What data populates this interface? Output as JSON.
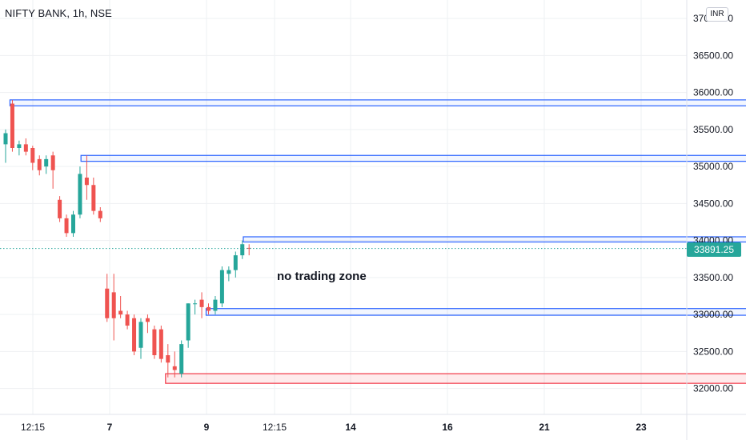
{
  "header": {
    "symbol": "NIFTY BANK, 1h, NSE",
    "currency": "INR"
  },
  "last_price_label": "33891.25",
  "annotation": "no trading zone",
  "colors": {
    "up": "#26a69a",
    "down": "#ef5350",
    "zone_blue": "#2962ff",
    "zone_red": "#f23645",
    "grid": "#eef0f3",
    "axis_text": "#131722"
  },
  "chart_data": {
    "type": "candlestick",
    "title": "NIFTY BANK, 1h, NSE",
    "ylim": [
      31650,
      37250
    ],
    "y_ticks": [
      32000,
      32500,
      33000,
      33500,
      34000,
      34500,
      35000,
      35500,
      36000,
      36500,
      37000
    ],
    "y_tick_labels": [
      "32000.00",
      "32500.00",
      "33000.00",
      "33500.00",
      "34000.00",
      "34500.00",
      "35000.00",
      "35500.00",
      "36000.00",
      "36500.00",
      "37000.00"
    ],
    "x_labels": [
      "12:15",
      "7",
      "9",
      "12:15",
      "14",
      "16",
      "21",
      "23"
    ],
    "last_price": 33891.25,
    "candles": [
      {
        "o": 35300,
        "h": 35500,
        "l": 35050,
        "c": 35450
      },
      {
        "o": 35850,
        "h": 35900,
        "l": 35200,
        "c": 35250
      },
      {
        "o": 35250,
        "h": 35350,
        "l": 35150,
        "c": 35300
      },
      {
        "o": 35300,
        "h": 35380,
        "l": 35150,
        "c": 35200
      },
      {
        "o": 35250,
        "h": 35280,
        "l": 34950,
        "c": 35050
      },
      {
        "o": 35100,
        "h": 35150,
        "l": 34880,
        "c": 34950
      },
      {
        "o": 35000,
        "h": 35150,
        "l": 34900,
        "c": 35100
      },
      {
        "o": 35150,
        "h": 35200,
        "l": 34700,
        "c": 34950
      },
      {
        "o": 34550,
        "h": 34600,
        "l": 34250,
        "c": 34300
      },
      {
        "o": 34300,
        "h": 34350,
        "l": 34050,
        "c": 34100
      },
      {
        "o": 34100,
        "h": 34400,
        "l": 34050,
        "c": 34350
      },
      {
        "o": 34350,
        "h": 35000,
        "l": 34300,
        "c": 34900
      },
      {
        "o": 34850,
        "h": 35150,
        "l": 34550,
        "c": 34750
      },
      {
        "o": 34750,
        "h": 34850,
        "l": 34350,
        "c": 34400
      },
      {
        "o": 34400,
        "h": 34450,
        "l": 34250,
        "c": 34300
      },
      {
        "o": 33350,
        "h": 33550,
        "l": 32900,
        "c": 32950
      },
      {
        "o": 33300,
        "h": 33550,
        "l": 32650,
        "c": 32950
      },
      {
        "o": 33050,
        "h": 33250,
        "l": 32950,
        "c": 33000
      },
      {
        "o": 33000,
        "h": 33050,
        "l": 32800,
        "c": 32850
      },
      {
        "o": 32950,
        "h": 33000,
        "l": 32450,
        "c": 32500
      },
      {
        "o": 32550,
        "h": 32950,
        "l": 32400,
        "c": 32900
      },
      {
        "o": 32950,
        "h": 33000,
        "l": 32750,
        "c": 32900
      },
      {
        "o": 32800,
        "h": 32850,
        "l": 32400,
        "c": 32450
      },
      {
        "o": 32800,
        "h": 32850,
        "l": 32350,
        "c": 32400
      },
      {
        "o": 32450,
        "h": 32600,
        "l": 32150,
        "c": 32350
      },
      {
        "o": 32300,
        "h": 32500,
        "l": 32150,
        "c": 32250
      },
      {
        "o": 32200,
        "h": 32650,
        "l": 32150,
        "c": 32600
      },
      {
        "o": 32650,
        "h": 33150,
        "l": 32550,
        "c": 33150
      },
      {
        "o": 33150,
        "h": 33200,
        "l": 33000,
        "c": 33150
      },
      {
        "o": 33200,
        "h": 33300,
        "l": 32950,
        "c": 33100
      },
      {
        "o": 33100,
        "h": 33150,
        "l": 33000,
        "c": 33050
      },
      {
        "o": 33050,
        "h": 33250,
        "l": 33000,
        "c": 33200
      },
      {
        "o": 33150,
        "h": 33650,
        "l": 33100,
        "c": 33600
      },
      {
        "o": 33550,
        "h": 33650,
        "l": 33450,
        "c": 33600
      },
      {
        "o": 33600,
        "h": 33850,
        "l": 33500,
        "c": 33800
      },
      {
        "o": 33800,
        "h": 34000,
        "l": 33750,
        "c": 33950
      },
      {
        "o": 33900,
        "h": 33950,
        "l": 33800,
        "c": 33891.25
      }
    ],
    "zones": [
      {
        "color": "blue",
        "top": 35900,
        "bottom": 35820,
        "start": 1,
        "end": 150
      },
      {
        "color": "blue",
        "top": 35150,
        "bottom": 35070,
        "start": 11.5,
        "end": 125
      },
      {
        "color": "blue",
        "top": 34050,
        "bottom": 33980,
        "start": 35.5,
        "end": 152
      },
      {
        "color": "blue",
        "top": 33080,
        "bottom": 32990,
        "start": 30,
        "end": 113
      },
      {
        "color": "red",
        "top": 32200,
        "bottom": 32070,
        "start": 24,
        "end": 152
      }
    ]
  }
}
